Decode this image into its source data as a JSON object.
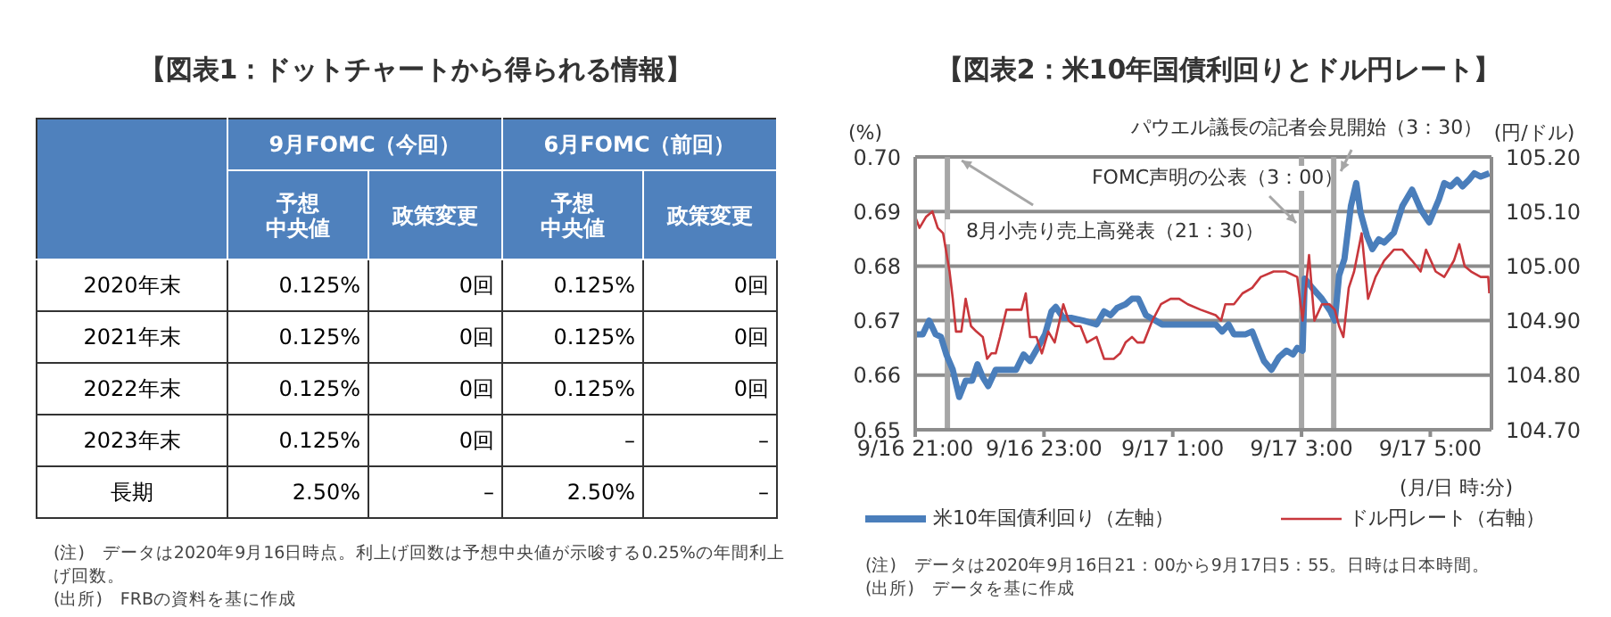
{
  "chart_data": [
    {
      "type": "heatmap",
      "title": "【図表1：ドットチャートから得られる情報】",
      "categories": [
        "予想中央値",
        "政策変更",
        "予想中央値",
        "政策変更"
      ],
      "y_categories": [
        "2020年末",
        "2021年末",
        "2022年末",
        "2023年末",
        "長期"
      ],
      "cells": [
        [
          0.125,
          0,
          0.125,
          0
        ],
        [
          0.125,
          0,
          0.125,
          0
        ],
        [
          0.125,
          0,
          0.125,
          0
        ],
        [
          0.125,
          0,
          null,
          null
        ],
        [
          2.5,
          null,
          2.5,
          null
        ]
      ],
      "cell_labels": [
        [
          "0.125%",
          "0回",
          "0.125%",
          "0回"
        ],
        [
          "0.125%",
          "0回",
          "0.125%",
          "0回"
        ],
        [
          "0.125%",
          "0回",
          "0.125%",
          "0回"
        ],
        [
          "0.125%",
          "0回",
          "–",
          "–"
        ],
        [
          "2.50%",
          "–",
          "2.50%",
          "–"
        ]
      ],
      "annotations": [
        "9月FOMC（今回）",
        "6月FOMC（前回）",
        "(注)　データは2020年9月16日時点。利上げ回数は予想中央値が示唆する0.25%の年間利上げ回数。",
        "(出所)　FRBの資料を基に作成"
      ]
    },
    {
      "type": "line",
      "title": "【図表2：米10年国債利回りとドル円レート】",
      "xlabel": "(月/日 時:分)",
      "ylabel": "(%)",
      "y2label": "(円/ドル)",
      "xlim": [
        "2020-09-16T21:00",
        "2020-09-17T05:57"
      ],
      "xticks": [
        {
          "value": "2020-09-16T21:00",
          "label": "9/16 21:00"
        },
        {
          "value": "2020-09-16T23:00",
          "label": "9/16 23:00"
        },
        {
          "value": "2020-09-17T01:00",
          "label": "9/17 1:00"
        },
        {
          "value": "2020-09-17T03:00",
          "label": "9/17 3:00"
        },
        {
          "value": "2020-09-17T05:00",
          "label": "9/17 5:00"
        }
      ],
      "ylim": [
        0.65,
        0.7
      ],
      "yticks": [
        0.65,
        0.66,
        0.67,
        0.68,
        0.69,
        {
          "value": 0.7,
          "label": "0.70"
        }
      ],
      "y2lim": [
        104.7,
        105.2
      ],
      "y2ticks": [
        {
          "value": 104.7,
          "label": "104.70"
        },
        {
          "value": 104.8,
          "label": "104.80"
        },
        {
          "value": 104.9,
          "label": "104.90"
        },
        {
          "value": 105,
          "label": "105.00"
        },
        {
          "value": 105.1,
          "label": "105.10"
        },
        {
          "value": 105.2,
          "label": "105.20"
        }
      ],
      "grid": "y",
      "legend": "bottom",
      "series": [
        {
          "name": "米10年国債利回り（左軸）",
          "color": "#4a7ebb",
          "x": [
            "2020-09-16T21:00",
            "2020-09-16T21:07",
            "2020-09-16T21:13",
            "2020-09-16T21:19",
            "2020-09-16T21:24",
            "2020-09-16T21:29",
            "2020-09-16T21:35",
            "2020-09-16T21:41",
            "2020-09-16T21:47",
            "2020-09-16T21:53",
            "2020-09-16T21:58",
            "2020-09-16T22:03",
            "2020-09-16T22:08",
            "2020-09-16T22:15",
            "2020-09-16T22:25",
            "2020-09-16T22:34",
            "2020-09-16T22:41",
            "2020-09-16T22:47",
            "2020-09-16T22:56",
            "2020-09-16T23:01",
            "2020-09-16T23:07",
            "2020-09-16T23:11",
            "2020-09-16T23:18",
            "2020-09-16T23:26",
            "2020-09-16T23:37",
            "2020-09-16T23:49",
            "2020-09-16T23:56",
            "2020-09-17T00:02",
            "2020-09-17T00:08",
            "2020-09-17T00:16",
            "2020-09-17T00:22",
            "2020-09-17T00:28",
            "2020-09-17T00:35",
            "2020-09-17T00:44",
            "2020-09-17T00:50",
            "2020-09-17T01:01",
            "2020-09-17T01:17",
            "2020-09-17T01:40",
            "2020-09-17T01:46",
            "2020-09-17T01:52",
            "2020-09-17T01:57",
            "2020-09-17T02:08",
            "2020-09-17T02:14",
            "2020-09-17T02:20",
            "2020-09-17T02:25",
            "2020-09-17T02:32",
            "2020-09-17T02:39",
            "2020-09-17T02:46",
            "2020-09-17T02:52",
            "2020-09-17T02:56",
            "2020-09-17T03:01",
            "2020-09-17T03:03",
            "2020-09-17T03:10",
            "2020-09-17T03:19",
            "2020-09-17T03:27",
            "2020-09-17T03:31",
            "2020-09-17T03:35",
            "2020-09-17T03:40",
            "2020-09-17T03:46",
            "2020-09-17T03:51",
            "2020-09-17T03:55",
            "2020-09-17T04:01",
            "2020-09-17T04:06",
            "2020-09-17T04:12",
            "2020-09-17T04:17",
            "2020-09-17T04:26",
            "2020-09-17T04:34",
            "2020-09-17T04:43",
            "2020-09-17T04:51",
            "2020-09-17T04:59",
            "2020-09-17T05:08",
            "2020-09-17T05:13",
            "2020-09-17T05:19",
            "2020-09-17T05:25",
            "2020-09-17T05:30",
            "2020-09-17T05:36",
            "2020-09-17T05:41",
            "2020-09-17T05:47",
            "2020-09-17T05:55"
          ],
          "values": [
            0.6675,
            0.6675,
            0.67,
            0.6675,
            0.667,
            0.6638,
            0.661,
            0.656,
            0.659,
            0.659,
            0.662,
            0.6596,
            0.658,
            0.661,
            0.661,
            0.661,
            0.6638,
            0.6626,
            0.6657,
            0.6675,
            0.6717,
            0.6725,
            0.6705,
            0.6705,
            0.67,
            0.6693,
            0.6717,
            0.671,
            0.6723,
            0.673,
            0.674,
            0.674,
            0.671,
            0.67,
            0.6693,
            0.6693,
            0.6693,
            0.6693,
            0.668,
            0.6693,
            0.6675,
            0.6675,
            0.668,
            0.665,
            0.6626,
            0.661,
            0.6633,
            0.6645,
            0.6638,
            0.665,
            0.6645,
            0.6777,
            0.676,
            0.674,
            0.6717,
            0.67,
            0.6783,
            0.6813,
            0.691,
            0.6952,
            0.6898,
            0.6855,
            0.6831,
            0.6849,
            0.6843,
            0.6861,
            0.691,
            0.694,
            0.6904,
            0.688,
            0.6922,
            0.6952,
            0.6946,
            0.6958,
            0.6946,
            0.6958,
            0.697,
            0.6964,
            0.697
          ]
        },
        {
          "name": "ドル円レート（右軸）",
          "color": "#c8373c",
          "axis": "y2",
          "x": [
            "2020-09-16T21:00",
            "2020-09-16T21:04",
            "2020-09-16T21:10",
            "2020-09-16T21:16",
            "2020-09-16T21:21",
            "2020-09-16T21:26",
            "2020-09-16T21:32",
            "2020-09-16T21:35",
            "2020-09-16T21:38",
            "2020-09-16T21:43",
            "2020-09-16T21:47",
            "2020-09-16T21:52",
            "2020-09-16T21:57",
            "2020-09-16T22:03",
            "2020-09-16T22:07",
            "2020-09-16T22:11",
            "2020-09-16T22:15",
            "2020-09-16T22:19",
            "2020-09-16T22:25",
            "2020-09-16T22:31",
            "2020-09-16T22:39",
            "2020-09-16T22:43",
            "2020-09-16T22:47",
            "2020-09-16T22:53",
            "2020-09-16T22:58",
            "2020-09-16T23:04",
            "2020-09-16T23:10",
            "2020-09-16T23:18",
            "2020-09-16T23:23",
            "2020-09-16T23:29",
            "2020-09-16T23:34",
            "2020-09-16T23:40",
            "2020-09-16T23:49",
            "2020-09-16T23:56",
            "2020-09-17T00:05",
            "2020-09-17T00:11",
            "2020-09-17T00:16",
            "2020-09-17T00:22",
            "2020-09-17T00:27",
            "2020-09-17T00:33",
            "2020-09-17T00:41",
            "2020-09-17T00:49",
            "2020-09-17T00:58",
            "2020-09-17T01:06",
            "2020-09-17T01:14",
            "2020-09-17T01:26",
            "2020-09-17T01:40",
            "2020-09-17T01:45",
            "2020-09-17T01:49",
            "2020-09-17T01:57",
            "2020-09-17T02:05",
            "2020-09-17T02:14",
            "2020-09-17T02:22",
            "2020-09-17T02:34",
            "2020-09-17T02:45",
            "2020-09-17T02:56",
            "2020-09-17T03:01",
            "2020-09-17T03:07",
            "2020-09-17T03:12",
            "2020-09-17T03:19",
            "2020-09-17T03:26",
            "2020-09-17T03:31",
            "2020-09-17T03:35",
            "2020-09-17T03:39",
            "2020-09-17T03:44",
            "2020-09-17T03:49",
            "2020-09-17T03:56",
            "2020-09-17T04:02",
            "2020-09-17T04:09",
            "2020-09-17T04:17",
            "2020-09-17T04:26",
            "2020-09-17T04:34",
            "2020-09-17T04:43",
            "2020-09-17T04:51",
            "2020-09-17T04:56",
            "2020-09-17T05:05",
            "2020-09-17T05:13",
            "2020-09-17T05:22",
            "2020-09-17T05:27",
            "2020-09-17T05:32",
            "2020-09-17T05:38",
            "2020-09-17T05:47",
            "2020-09-17T05:54",
            "2020-09-17T05:55"
          ],
          "values": [
            105.09,
            105.07,
            105.09,
            105.1,
            105.07,
            105.06,
            104.99,
            104.94,
            104.88,
            104.88,
            104.94,
            104.89,
            104.88,
            104.87,
            104.83,
            104.84,
            104.84,
            104.87,
            104.92,
            104.92,
            104.92,
            104.95,
            104.87,
            104.87,
            104.84,
            104.88,
            104.86,
            104.93,
            104.9,
            104.89,
            104.89,
            104.86,
            104.87,
            104.83,
            104.83,
            104.84,
            104.86,
            104.87,
            104.86,
            104.86,
            104.9,
            104.93,
            104.94,
            104.94,
            104.93,
            104.92,
            104.91,
            104.9,
            104.93,
            104.93,
            104.95,
            104.96,
            104.98,
            104.99,
            104.99,
            104.98,
            104.9,
            105.02,
            104.9,
            104.93,
            104.93,
            104.92,
            104.89,
            104.87,
            104.96,
            104.99,
            105.06,
            104.94,
            104.98,
            105.01,
            105.03,
            105.03,
            105.01,
            104.99,
            105.03,
            104.99,
            104.98,
            105.01,
            105.04,
            105,
            104.99,
            104.98,
            104.98,
            104.95
          ]
        }
      ],
      "ref_lines": [
        {
          "axis": "x",
          "value": "2020-09-16T21:30",
          "label": "8月小売り売上高発表（21：30）",
          "color": "#a6a6a6"
        },
        {
          "axis": "x",
          "value": "2020-09-17T03:00",
          "label": "FOMC声明の公表（3：00）",
          "color": "#a6a6a6"
        },
        {
          "axis": "x",
          "value": "2020-09-17T03:30",
          "label": "パウエル議長の記者会見開始（3：30）",
          "color": "#a6a6a6"
        }
      ],
      "annotations": [
        "(注)　データは2020年9月16日21：00から9月17日5：55。日時は日本時間。",
        "(出所)　データを基に作成"
      ]
    }
  ]
}
